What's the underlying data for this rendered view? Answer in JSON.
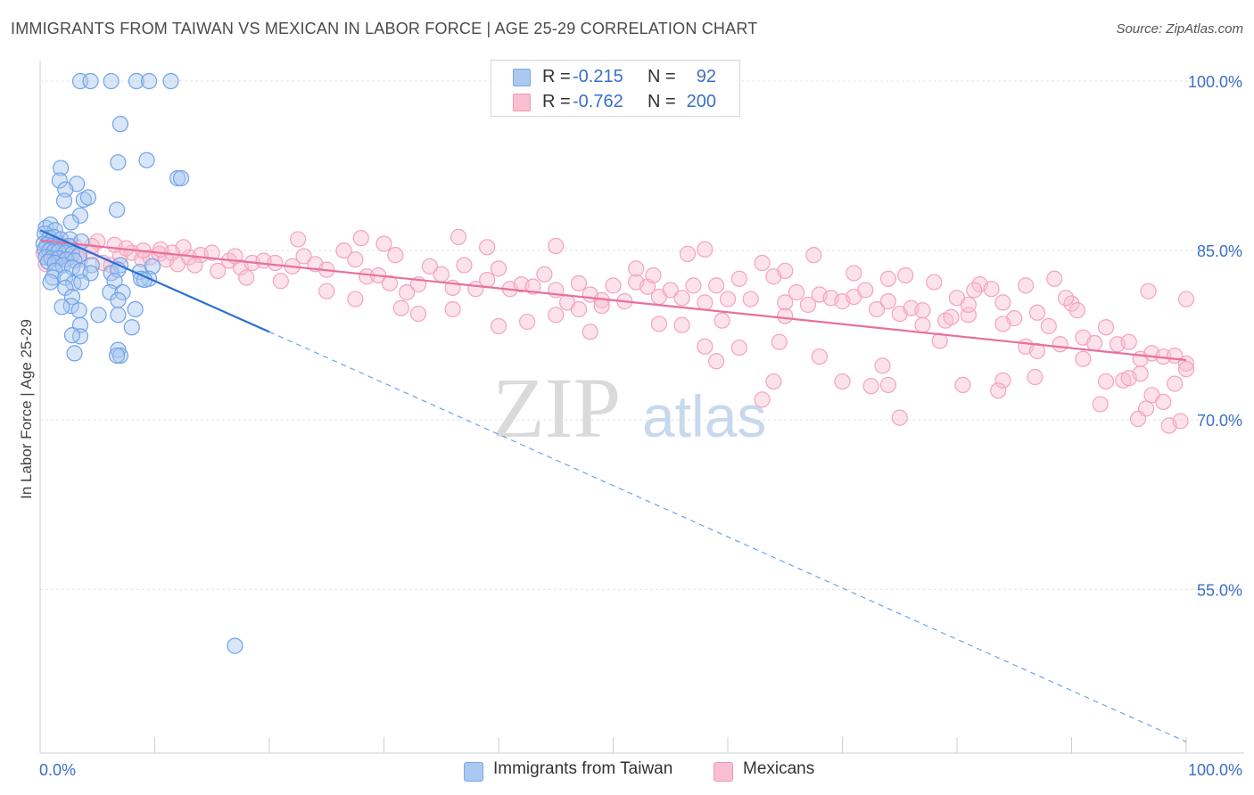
{
  "title": "IMMIGRANTS FROM TAIWAN VS MEXICAN IN LABOR FORCE | AGE 25-29 CORRELATION CHART",
  "source": "Source: ZipAtlas.com",
  "watermark": {
    "zip": "ZIP",
    "atlas": "atlas"
  },
  "stats": [
    {
      "r_label": "R =",
      "r_value": "-0.215",
      "n_label": "N =",
      "n_value": "92",
      "color": "#aac8f0"
    },
    {
      "r_label": "R =",
      "r_value": "-0.762",
      "n_label": "N =",
      "n_value": "200",
      "color": "#f9bfd0"
    }
  ],
  "legend": [
    {
      "label": "Immigrants from Taiwan",
      "color": "#aac8f0"
    },
    {
      "label": "Mexicans",
      "color": "#f9bfd0"
    }
  ],
  "chart_data": {
    "type": "scatter",
    "title": "IMMIGRANTS FROM TAIWAN VS MEXICAN IN LABOR FORCE | AGE 25-29 CORRELATION CHART",
    "xlabel": "",
    "ylabel": "In Labor Force | Age 25-29",
    "xlim": [
      0,
      100
    ],
    "ylim": [
      40.5,
      101.5
    ],
    "x_tick_labels": [
      "0.0%",
      "100.0%"
    ],
    "y_ticks": [
      100,
      85,
      70,
      55
    ],
    "y_tick_labels": [
      "100.0%",
      "85.0%",
      "70.0%",
      "55.0%"
    ],
    "grid": true,
    "legend_position": "bottom",
    "series": [
      {
        "name": "Immigrants from Taiwan",
        "color": "#6fa3e8",
        "line_color": "#2a6fd4",
        "trend": {
          "x0": 0,
          "y0": 86.8,
          "x1": 20,
          "y1": 77.8,
          "dashed_to": 100,
          "dashed_end_y": 41.5
        },
        "points": [
          [
            3.5,
            100
          ],
          [
            4.4,
            100
          ],
          [
            6.2,
            100
          ],
          [
            8.4,
            100
          ],
          [
            9.5,
            100
          ],
          [
            11.4,
            100
          ],
          [
            7,
            96.2
          ],
          [
            9.3,
            93
          ],
          [
            6.8,
            92.8
          ],
          [
            1.8,
            92.3
          ],
          [
            1.7,
            91.2
          ],
          [
            3.2,
            90.9
          ],
          [
            2.2,
            90.4
          ],
          [
            12,
            91.4
          ],
          [
            12.3,
            91.4
          ],
          [
            3.8,
            89.5
          ],
          [
            4.2,
            89.7
          ],
          [
            2.1,
            89.4
          ],
          [
            6.7,
            88.6
          ],
          [
            3.5,
            88.1
          ],
          [
            2.7,
            87.5
          ],
          [
            0.5,
            87
          ],
          [
            0.9,
            87.3
          ],
          [
            1.3,
            86.8
          ],
          [
            0.4,
            86.5
          ],
          [
            0.8,
            86.1
          ],
          [
            1.2,
            86.2
          ],
          [
            1.8,
            86
          ],
          [
            2.6,
            86
          ],
          [
            3.6,
            85.8
          ],
          [
            0.3,
            85.6
          ],
          [
            0.6,
            85.5
          ],
          [
            1,
            85.4
          ],
          [
            1.4,
            85.3
          ],
          [
            2,
            85.3
          ],
          [
            2.5,
            85.4
          ],
          [
            0.4,
            85.1
          ],
          [
            0.8,
            85
          ],
          [
            1.2,
            84.9
          ],
          [
            1.6,
            84.9
          ],
          [
            2.2,
            84.8
          ],
          [
            2.8,
            84.7
          ],
          [
            3.4,
            84.6
          ],
          [
            0.5,
            84.4
          ],
          [
            1,
            84.3
          ],
          [
            1.6,
            84.3
          ],
          [
            2.3,
            84.2
          ],
          [
            3,
            84.1
          ],
          [
            0.7,
            84
          ],
          [
            1.3,
            83.9
          ],
          [
            2,
            83.7
          ],
          [
            2.8,
            83.5
          ],
          [
            4.5,
            83.7
          ],
          [
            7,
            83.7
          ],
          [
            1.3,
            83.2
          ],
          [
            3.5,
            83.2
          ],
          [
            4.4,
            83
          ],
          [
            6.2,
            83
          ],
          [
            6.8,
            83.3
          ],
          [
            8.7,
            83.1
          ],
          [
            9.8,
            83.6
          ],
          [
            9.5,
            82.5
          ],
          [
            1.1,
            82.6
          ],
          [
            2.2,
            82.6
          ],
          [
            0.9,
            82.2
          ],
          [
            2.9,
            82.1
          ],
          [
            3.6,
            82.2
          ],
          [
            6.5,
            82.3
          ],
          [
            8.8,
            82.5
          ],
          [
            9.1,
            82.4
          ],
          [
            2.2,
            81.7
          ],
          [
            6.1,
            81.3
          ],
          [
            7.2,
            81.3
          ],
          [
            2.8,
            80.9
          ],
          [
            6.8,
            80.6
          ],
          [
            2.7,
            80.1
          ],
          [
            1.9,
            80
          ],
          [
            3.4,
            79.7
          ],
          [
            8.3,
            79.8
          ],
          [
            5.1,
            79.3
          ],
          [
            6.8,
            79.3
          ],
          [
            8,
            78.2
          ],
          [
            3.5,
            78.4
          ],
          [
            3.5,
            77.4
          ],
          [
            2.8,
            77.5
          ],
          [
            6.8,
            76.2
          ],
          [
            3.0,
            75.9
          ],
          [
            7.0,
            75.7
          ],
          [
            6.7,
            75.7
          ],
          [
            17,
            50
          ]
        ]
      },
      {
        "name": "Mexicans",
        "color": "#f5a3bd",
        "line_color": "#e8709a",
        "trend": {
          "x0": 0,
          "y0": 85.9,
          "x1": 100,
          "y1": 75.3
        },
        "points": [
          [
            0.3,
            84.8
          ],
          [
            0.5,
            83.8
          ],
          [
            0.9,
            84.3
          ],
          [
            1.3,
            85.1
          ],
          [
            1.8,
            84.6
          ],
          [
            2.3,
            84.9
          ],
          [
            3,
            85.4
          ],
          [
            3.5,
            84.2
          ],
          [
            4.4,
            84.9
          ],
          [
            5.5,
            83.9
          ],
          [
            6.2,
            83.7
          ],
          [
            7,
            84.5
          ],
          [
            8,
            84.8
          ],
          [
            8.9,
            84.2
          ],
          [
            9.6,
            84.4
          ],
          [
            10.4,
            84.7
          ],
          [
            11,
            84.2
          ],
          [
            12,
            83.8
          ],
          [
            13,
            84.4
          ],
          [
            14,
            84.6
          ],
          [
            15,
            84.8
          ],
          [
            16.5,
            84.1
          ],
          [
            17.5,
            83.5
          ],
          [
            18.5,
            83.9
          ],
          [
            19.5,
            84.1
          ],
          [
            20.5,
            83.9
          ],
          [
            21,
            82.3
          ],
          [
            22,
            83.6
          ],
          [
            23,
            84.5
          ],
          [
            24,
            83.8
          ],
          [
            25,
            83.3
          ],
          [
            26.5,
            85
          ],
          [
            27.5,
            84.2
          ],
          [
            28.5,
            82.7
          ],
          [
            29.5,
            82.8
          ],
          [
            30.5,
            82.1
          ],
          [
            31,
            84.6
          ],
          [
            32,
            81.3
          ],
          [
            33,
            82
          ],
          [
            34,
            83.6
          ],
          [
            35,
            82.9
          ],
          [
            36,
            81.7
          ],
          [
            37,
            83.7
          ],
          [
            38,
            81.6
          ],
          [
            39,
            82.4
          ],
          [
            40,
            83.4
          ],
          [
            41,
            81.6
          ],
          [
            42,
            82
          ],
          [
            43,
            81.8
          ],
          [
            44,
            82.9
          ],
          [
            45,
            81.5
          ],
          [
            46,
            80.4
          ],
          [
            47,
            82.1
          ],
          [
            48,
            81.1
          ],
          [
            49,
            80.6
          ],
          [
            50,
            81.9
          ],
          [
            51,
            80.5
          ],
          [
            52,
            82.2
          ],
          [
            53,
            81.8
          ],
          [
            54,
            80.9
          ],
          [
            55,
            81.5
          ],
          [
            56,
            80.8
          ],
          [
            57,
            81.9
          ],
          [
            58,
            80.4
          ],
          [
            59,
            81.9
          ],
          [
            60,
            80.7
          ],
          [
            61,
            82.5
          ],
          [
            62,
            80.7
          ],
          [
            63,
            83.9
          ],
          [
            64,
            82.7
          ],
          [
            65,
            80.4
          ],
          [
            66,
            81.3
          ],
          [
            67,
            80.2
          ],
          [
            68,
            81.1
          ],
          [
            69,
            80.8
          ],
          [
            70,
            80.5
          ],
          [
            71,
            80.9
          ],
          [
            72,
            81.5
          ],
          [
            73,
            79.8
          ],
          [
            74,
            80.5
          ],
          [
            75,
            79.4
          ],
          [
            76,
            79.9
          ],
          [
            77,
            79.7
          ],
          [
            78,
            82.2
          ],
          [
            79,
            78.8
          ],
          [
            80,
            80.8
          ],
          [
            81,
            79.3
          ],
          [
            82,
            82
          ],
          [
            83,
            81.6
          ],
          [
            84,
            80.4
          ],
          [
            85,
            79
          ],
          [
            86,
            81.9
          ],
          [
            87,
            79.5
          ],
          [
            88,
            78.3
          ],
          [
            89,
            76.7
          ],
          [
            90,
            80.3
          ],
          [
            91,
            77.3
          ],
          [
            92,
            76.8
          ],
          [
            93,
            78.2
          ],
          [
            94,
            76.7
          ],
          [
            95,
            76.9
          ],
          [
            96,
            75.4
          ],
          [
            97,
            75.9
          ],
          [
            98,
            75.6
          ],
          [
            99,
            75.7
          ],
          [
            100,
            75
          ],
          [
            22.5,
            86
          ],
          [
            28,
            86.1
          ],
          [
            30,
            85.6
          ],
          [
            36.5,
            86.2
          ],
          [
            39,
            85.3
          ],
          [
            45,
            85.4
          ],
          [
            52,
            83.4
          ],
          [
            53.5,
            82.8
          ],
          [
            56.5,
            84.7
          ],
          [
            58,
            85.1
          ],
          [
            65,
            83.2
          ],
          [
            67.5,
            84.6
          ],
          [
            71,
            83
          ],
          [
            74,
            82.5
          ],
          [
            75.5,
            82.8
          ],
          [
            81,
            80.2
          ],
          [
            81.5,
            81.5
          ],
          [
            84,
            78.5
          ],
          [
            86,
            76.5
          ],
          [
            87,
            76.1
          ],
          [
            88.5,
            82.5
          ],
          [
            89.5,
            80.8
          ],
          [
            90.5,
            79.7
          ],
          [
            91,
            75.4
          ],
          [
            92.5,
            71.4
          ],
          [
            93,
            73.4
          ],
          [
            94.5,
            73.5
          ],
          [
            95,
            73.7
          ],
          [
            96.5,
            71
          ],
          [
            97,
            72.2
          ],
          [
            98,
            71.6
          ],
          [
            99,
            73.2
          ],
          [
            58,
            76.5
          ],
          [
            59,
            75.2
          ],
          [
            61,
            76.4
          ],
          [
            64,
            73.4
          ],
          [
            64.5,
            76.9
          ],
          [
            68,
            75.6
          ],
          [
            70,
            73.4
          ],
          [
            72.5,
            73
          ],
          [
            73.5,
            74.8
          ],
          [
            74,
            73.1
          ],
          [
            75,
            70.2
          ],
          [
            77,
            78.4
          ],
          [
            78.5,
            77
          ],
          [
            79.5,
            79.1
          ],
          [
            63,
            71.8
          ],
          [
            65,
            79.2
          ],
          [
            54,
            78.5
          ],
          [
            56,
            78.4
          ],
          [
            59.5,
            78.8
          ],
          [
            47,
            79.8
          ],
          [
            49,
            80.1
          ],
          [
            48,
            77.8
          ],
          [
            45,
            79.3
          ],
          [
            42.5,
            78.7
          ],
          [
            40,
            78.3
          ],
          [
            36,
            79.8
          ],
          [
            33,
            79.4
          ],
          [
            31.5,
            79.9
          ],
          [
            27.5,
            80.7
          ],
          [
            25,
            81.4
          ],
          [
            18,
            82.6
          ],
          [
            17,
            84.5
          ],
          [
            15.5,
            83.2
          ],
          [
            13.5,
            83.7
          ],
          [
            12.5,
            85.3
          ],
          [
            11.5,
            84.8
          ],
          [
            10.5,
            85.1
          ],
          [
            9,
            85
          ],
          [
            7.5,
            85.2
          ],
          [
            6.5,
            85.5
          ],
          [
            5,
            85.8
          ],
          [
            4.5,
            85.4
          ],
          [
            2.8,
            85.2
          ],
          [
            1.6,
            85.6
          ],
          [
            95.8,
            70.1
          ],
          [
            98.5,
            69.5
          ],
          [
            99.5,
            69.9
          ],
          [
            96,
            74.1
          ],
          [
            100,
            74.5
          ],
          [
            100,
            80.7
          ],
          [
            96.7,
            81.4
          ],
          [
            84,
            73.5
          ],
          [
            83.6,
            72.6
          ],
          [
            80.5,
            73.1
          ],
          [
            86.8,
            73.8
          ]
        ]
      }
    ]
  }
}
